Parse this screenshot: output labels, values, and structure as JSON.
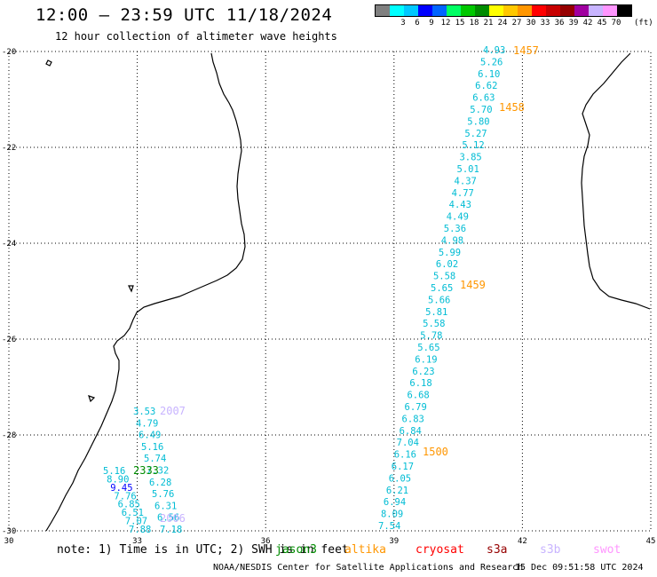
{
  "header": {
    "title": "12:00 – 23:59 UTC 11/18/2024",
    "subtitle": "12 hour collection of altimeter wave heights"
  },
  "color_scale": {
    "unit": "(ft)",
    "swatches": [
      {
        "label": "",
        "color": "#808080"
      },
      {
        "label": "3",
        "color": "#00ffff"
      },
      {
        "label": "6",
        "color": "#00c8ff"
      },
      {
        "label": "9",
        "color": "#0000ff"
      },
      {
        "label": "12",
        "color": "#0064ff"
      },
      {
        "label": "15",
        "color": "#00ff64"
      },
      {
        "label": "18",
        "color": "#00c800"
      },
      {
        "label": "21",
        "color": "#008c00"
      },
      {
        "label": "24",
        "color": "#ffff00"
      },
      {
        "label": "27",
        "color": "#ffc800"
      },
      {
        "label": "30",
        "color": "#ff9600"
      },
      {
        "label": "33",
        "color": "#ff0000"
      },
      {
        "label": "36",
        "color": "#c80000"
      },
      {
        "label": "39",
        "color": "#960000"
      },
      {
        "label": "42",
        "color": "#a000a0"
      },
      {
        "label": "45",
        "color": "#c8b4ff"
      },
      {
        "label": "70",
        "color": "#ff96ff"
      },
      {
        "label": "",
        "color": "#000000"
      }
    ]
  },
  "map": {
    "lon_range": [
      30,
      45
    ],
    "lat_range": [
      -30,
      -20
    ],
    "x_ticks": [
      30,
      33,
      36,
      39,
      42,
      45
    ],
    "y_ticks": [
      -20,
      -22,
      -24,
      -26,
      -28,
      -30
    ],
    "x_tick_labels": [
      "30",
      "33",
      "36",
      "39",
      "42",
      "45"
    ],
    "y_tick_labels": [
      "-20",
      "-22",
      "-24",
      "-26",
      "-28",
      "-30"
    ],
    "grid": "dotted"
  },
  "track_east": {
    "color": "#00bcd4",
    "values": [
      "4.93",
      "5.26",
      "6.10",
      "6.62",
      "6.63",
      "5.70",
      "5.80",
      "5.27",
      "5.12",
      "3.85",
      "5.01",
      "4.37",
      "4.77",
      "4.43",
      "4.49",
      "5.36",
      "4.98",
      "5.99",
      "6.02",
      "5.58",
      "5.65",
      "5.66",
      "5.81",
      "5.58",
      "5.78",
      "5.65",
      "6.19",
      "6.23",
      "6.18",
      "6.68",
      "6.79",
      "6.83",
      "6.84",
      "7.04",
      "6.16",
      "6.17",
      "6.05",
      "6.21",
      "6.94",
      "8.09",
      "7.54"
    ]
  },
  "track_west": {
    "values": [
      {
        "text": "3.53",
        "color": "#00bcd4"
      },
      {
        "text": "4.79",
        "color": "#00bcd4"
      },
      {
        "text": "6.49",
        "color": "#00bcd4"
      },
      {
        "text": "5.16",
        "color": "#00bcd4"
      },
      {
        "text": "5.74",
        "color": "#00bcd4"
      },
      {
        "text": "7.32",
        "color": "#00bcd4"
      },
      {
        "text": "6.28",
        "color": "#00bcd4"
      },
      {
        "text": "5.76",
        "color": "#00bcd4"
      },
      {
        "text": "6.31",
        "color": "#00bcd4"
      },
      {
        "text": "6.56",
        "color": "#00bcd4"
      },
      {
        "text": "7.18",
        "color": "#00bcd4"
      }
    ],
    "west_values": [
      {
        "text": "5.16",
        "color": "#00bcd4"
      },
      {
        "text": "8.90",
        "color": "#00bcd4"
      },
      {
        "text": "9.45",
        "color": "#0000ff"
      },
      {
        "text": "7.76",
        "color": "#00bcd4"
      },
      {
        "text": "6.85",
        "color": "#00bcd4"
      },
      {
        "text": "6.51",
        "color": "#00bcd4"
      },
      {
        "text": "7.07",
        "color": "#00bcd4"
      },
      {
        "text": "7.88",
        "color": "#00bcd4"
      }
    ]
  },
  "time_labels": [
    {
      "text": "1457",
      "color": "#ff9600"
    },
    {
      "text": "1458",
      "color": "#ff9600"
    },
    {
      "text": "1459",
      "color": "#ff9600"
    },
    {
      "text": "1500",
      "color": "#ff9600"
    },
    {
      "text": "2007",
      "color": "#c8b4ff"
    },
    {
      "text": "2333",
      "color": "#008c00"
    },
    {
      "text": "2006",
      "color": "#c8b4ff"
    }
  ],
  "footer": {
    "note": "note: 1) Time is in UTC; 2) SWH is in feet",
    "satellites": [
      {
        "name": "jason3",
        "color": "#008c00"
      },
      {
        "name": "altika",
        "color": "#ff9600"
      },
      {
        "name": "cryosat",
        "color": "#ff0000"
      },
      {
        "name": "s3a",
        "color": "#960000"
      },
      {
        "name": "s3b",
        "color": "#c8b4ff"
      },
      {
        "name": "swot",
        "color": "#ff96ff"
      }
    ],
    "credit": "NOAA/NESDIS Center for Satellite Applications and Research",
    "generated": "15 Dec 09:51:58 UTC 2024"
  }
}
